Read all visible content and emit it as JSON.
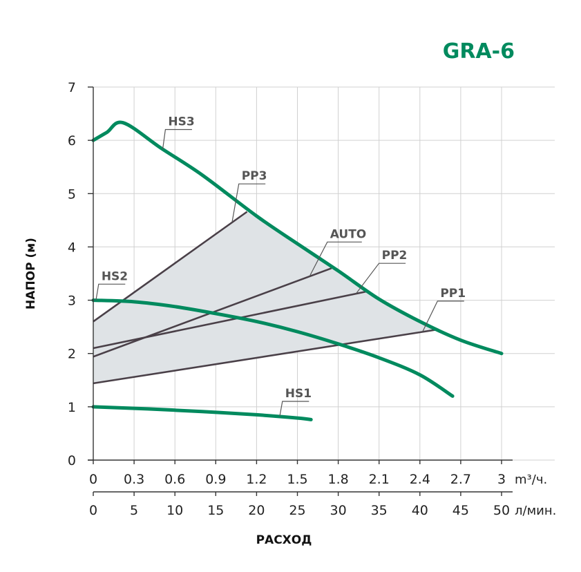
{
  "chart_data": {
    "type": "line",
    "title": "GRA-6",
    "xlabel": "РАСХОД",
    "ylabel": "НАПОР (м)",
    "x_unit": "m³/ч.",
    "x2_unit": "л/мин.",
    "xlim": [
      0,
      3
    ],
    "ylim": [
      0,
      7
    ],
    "x_ticks": [
      "0",
      "0.3",
      "0.6",
      "0.9",
      "1.2",
      "1.5",
      "1.8",
      "2.1",
      "2.4",
      "2.7",
      "3"
    ],
    "x2_ticks": [
      "0",
      "5",
      "10",
      "15",
      "20",
      "25",
      "30",
      "35",
      "40",
      "45",
      "50"
    ],
    "y_ticks": [
      "0",
      "1",
      "2",
      "3",
      "4",
      "5",
      "6",
      "7"
    ],
    "grid": true,
    "colors": {
      "curve": "#008a5e",
      "control_line": "#4a4048",
      "area_fill": "#dfe3e6",
      "title": "#008a5e",
      "grid": "#d0d0d0"
    },
    "region": {
      "points": [
        [
          0,
          2.6
        ],
        [
          1.13,
          4.66
        ],
        [
          1.75,
          3.6
        ],
        [
          2.02,
          3.17
        ],
        [
          2.53,
          2.45
        ],
        [
          0,
          1.44
        ]
      ]
    },
    "series": [
      {
        "name": "HS3",
        "kind": "curve",
        "points": [
          [
            0,
            6.0
          ],
          [
            0.1,
            6.15
          ],
          [
            0.22,
            6.33
          ],
          [
            0.5,
            5.85
          ],
          [
            0.8,
            5.35
          ],
          [
            1.2,
            4.58
          ],
          [
            1.5,
            4.06
          ],
          [
            1.8,
            3.55
          ],
          [
            2.1,
            3.02
          ],
          [
            2.4,
            2.6
          ],
          [
            2.7,
            2.25
          ],
          [
            3.0,
            2.0
          ]
        ]
      },
      {
        "name": "HS2",
        "kind": "curve",
        "points": [
          [
            0,
            3.0
          ],
          [
            0.3,
            2.97
          ],
          [
            0.6,
            2.88
          ],
          [
            0.9,
            2.75
          ],
          [
            1.2,
            2.6
          ],
          [
            1.5,
            2.41
          ],
          [
            1.8,
            2.18
          ],
          [
            2.1,
            1.92
          ],
          [
            2.4,
            1.6
          ],
          [
            2.64,
            1.2
          ]
        ]
      },
      {
        "name": "HS1",
        "kind": "curve",
        "points": [
          [
            0,
            1.0
          ],
          [
            0.4,
            0.96
          ],
          [
            0.8,
            0.91
          ],
          [
            1.2,
            0.85
          ],
          [
            1.5,
            0.79
          ],
          [
            1.6,
            0.76
          ]
        ]
      },
      {
        "name": "PP3",
        "kind": "control",
        "points": [
          [
            0,
            2.6
          ],
          [
            1.13,
            4.66
          ]
        ]
      },
      {
        "name": "AUTO",
        "kind": "control",
        "points": [
          [
            0,
            1.94
          ],
          [
            1.75,
            3.6
          ]
        ]
      },
      {
        "name": "PP2",
        "kind": "control",
        "points": [
          [
            0,
            2.1
          ],
          [
            2.02,
            3.17
          ]
        ]
      },
      {
        "name": "PP1",
        "kind": "control",
        "points": [
          [
            0,
            1.44
          ],
          [
            2.53,
            2.45
          ]
        ]
      }
    ],
    "labels": [
      {
        "text": "HS3",
        "x": 0.55,
        "y": 6.28,
        "anchor_x": 0.51,
        "anchor_y": 5.83
      },
      {
        "text": "PP3",
        "x": 1.09,
        "y": 5.26,
        "anchor_x": 1.02,
        "anchor_y": 4.46
      },
      {
        "text": "AUTO",
        "x": 1.74,
        "y": 4.17,
        "anchor_x": 1.59,
        "anchor_y": 3.45
      },
      {
        "text": "PP2",
        "x": 2.12,
        "y": 3.77,
        "anchor_x": 1.93,
        "anchor_y": 3.12
      },
      {
        "text": "PP1",
        "x": 2.55,
        "y": 3.06,
        "anchor_x": 2.42,
        "anchor_y": 2.41
      },
      {
        "text": "HS2",
        "x": 0.06,
        "y": 3.38,
        "anchor_x": 0.02,
        "anchor_y": 3.0
      },
      {
        "text": "HS1",
        "x": 1.41,
        "y": 1.18,
        "anchor_x": 1.37,
        "anchor_y": 0.82
      }
    ]
  }
}
